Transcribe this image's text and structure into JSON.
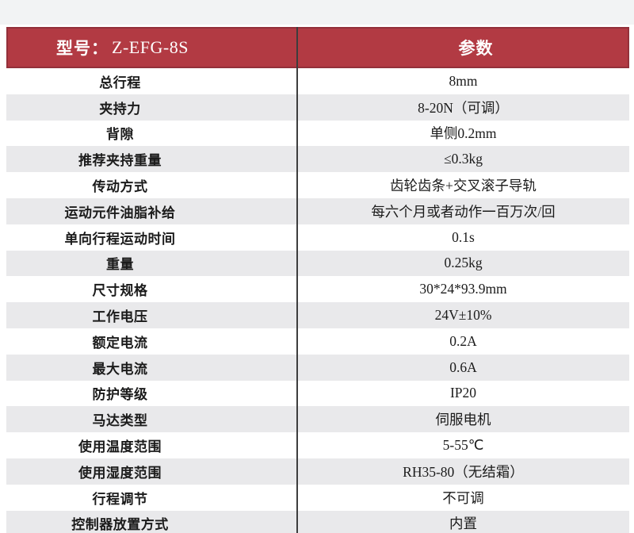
{
  "page": {
    "top_strip_color": "#f2f3f4",
    "background": "#ffffff"
  },
  "table": {
    "header": {
      "model_label": "型号：",
      "model_value": "Z-EFG-8S",
      "param_label": "参数"
    },
    "rows": [
      {
        "label": "总行程",
        "value": "8mm"
      },
      {
        "label": "夹持力",
        "value": "8-20N（可调）"
      },
      {
        "label": "背隙",
        "value": "单侧0.2mm"
      },
      {
        "label": "推荐夹持重量",
        "value": "≤0.3kg"
      },
      {
        "label": "传动方式",
        "value": "齿轮齿条+交叉滚子导轨"
      },
      {
        "label": "运动元件油脂补给",
        "value": "每六个月或者动作一百万次/回"
      },
      {
        "label": "单向行程运动时间",
        "value": "0.1s"
      },
      {
        "label": "重量",
        "value": "0.25kg"
      },
      {
        "label": "尺寸规格",
        "value": "30*24*93.9mm"
      },
      {
        "label": "工作电压",
        "value": "24V±10%"
      },
      {
        "label": "额定电流",
        "value": "0.2A"
      },
      {
        "label": "最大电流",
        "value": "0.6A"
      },
      {
        "label": "防护等级",
        "value": "IP20"
      },
      {
        "label": "马达类型",
        "value": "伺服电机"
      },
      {
        "label": "使用温度范围",
        "value": "5-55℃"
      },
      {
        "label": "使用湿度范围",
        "value": "RH35-80（无结霜）"
      },
      {
        "label": "行程调节",
        "value": "不可调"
      },
      {
        "label": "控制器放置方式",
        "value": "内置"
      }
    ],
    "colors": {
      "header_bg": "#b23a43",
      "header_border": "#93303a",
      "header_text": "#ffffff",
      "row_alt_bg": "#e9e9eb",
      "row_bg": "#ffffff",
      "divider": "#3d3d3d",
      "text": "#1b1b1b"
    }
  }
}
